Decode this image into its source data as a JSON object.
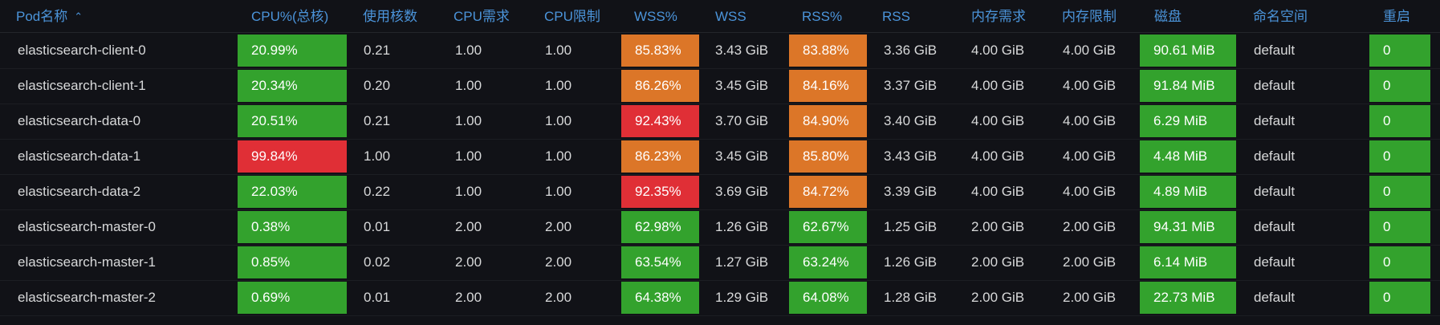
{
  "colors": {
    "background": "#111217",
    "header_text": "#4b94da",
    "cell_text": "#d8d9da",
    "green": "#33a22d",
    "orange": "#dc7628",
    "red": "#e02f36"
  },
  "table": {
    "headers": {
      "pod": "Pod名称",
      "pod_sort_icon": "chevron-up-icon",
      "cpu_pct": "CPU%(总核)",
      "cores": "使用核数",
      "cpu_req": "CPU需求",
      "cpu_lim": "CPU限制",
      "wss_pct": "WSS%",
      "wss": "WSS",
      "rss_pct": "RSS%",
      "rss": "RSS",
      "mem_req": "内存需求",
      "mem_lim": "内存限制",
      "disk": "磁盘",
      "namespace": "命名空间",
      "restarts": "重启"
    },
    "rows": [
      {
        "pod": "elasticsearch-client-0",
        "cpu_pct": "20.99%",
        "cpu_status": "green",
        "cores": "0.21",
        "cpu_req": "1.00",
        "cpu_lim": "1.00",
        "wss_pct": "85.83%",
        "wss_status": "orange",
        "wss": "3.43 GiB",
        "rss_pct": "83.88%",
        "rss_status": "orange",
        "rss": "3.36 GiB",
        "mem_req": "4.00 GiB",
        "mem_lim": "4.00 GiB",
        "disk": "90.61 MiB",
        "disk_status": "green",
        "namespace": "default",
        "restarts": "0",
        "restarts_status": "green"
      },
      {
        "pod": "elasticsearch-client-1",
        "cpu_pct": "20.34%",
        "cpu_status": "green",
        "cores": "0.20",
        "cpu_req": "1.00",
        "cpu_lim": "1.00",
        "wss_pct": "86.26%",
        "wss_status": "orange",
        "wss": "3.45 GiB",
        "rss_pct": "84.16%",
        "rss_status": "orange",
        "rss": "3.37 GiB",
        "mem_req": "4.00 GiB",
        "mem_lim": "4.00 GiB",
        "disk": "91.84 MiB",
        "disk_status": "green",
        "namespace": "default",
        "restarts": "0",
        "restarts_status": "green"
      },
      {
        "pod": "elasticsearch-data-0",
        "cpu_pct": "20.51%",
        "cpu_status": "green",
        "cores": "0.21",
        "cpu_req": "1.00",
        "cpu_lim": "1.00",
        "wss_pct": "92.43%",
        "wss_status": "red",
        "wss": "3.70 GiB",
        "rss_pct": "84.90%",
        "rss_status": "orange",
        "rss": "3.40 GiB",
        "mem_req": "4.00 GiB",
        "mem_lim": "4.00 GiB",
        "disk": "6.29 MiB",
        "disk_status": "green",
        "namespace": "default",
        "restarts": "0",
        "restarts_status": "green"
      },
      {
        "pod": "elasticsearch-data-1",
        "cpu_pct": "99.84%",
        "cpu_status": "red",
        "cores": "1.00",
        "cpu_req": "1.00",
        "cpu_lim": "1.00",
        "wss_pct": "86.23%",
        "wss_status": "orange",
        "wss": "3.45 GiB",
        "rss_pct": "85.80%",
        "rss_status": "orange",
        "rss": "3.43 GiB",
        "mem_req": "4.00 GiB",
        "mem_lim": "4.00 GiB",
        "disk": "4.48 MiB",
        "disk_status": "green",
        "namespace": "default",
        "restarts": "0",
        "restarts_status": "green"
      },
      {
        "pod": "elasticsearch-data-2",
        "cpu_pct": "22.03%",
        "cpu_status": "green",
        "cores": "0.22",
        "cpu_req": "1.00",
        "cpu_lim": "1.00",
        "wss_pct": "92.35%",
        "wss_status": "red",
        "wss": "3.69 GiB",
        "rss_pct": "84.72%",
        "rss_status": "orange",
        "rss": "3.39 GiB",
        "mem_req": "4.00 GiB",
        "mem_lim": "4.00 GiB",
        "disk": "4.89 MiB",
        "disk_status": "green",
        "namespace": "default",
        "restarts": "0",
        "restarts_status": "green"
      },
      {
        "pod": "elasticsearch-master-0",
        "cpu_pct": "0.38%",
        "cpu_status": "green",
        "cores": "0.01",
        "cpu_req": "2.00",
        "cpu_lim": "2.00",
        "wss_pct": "62.98%",
        "wss_status": "green",
        "wss": "1.26 GiB",
        "rss_pct": "62.67%",
        "rss_status": "green",
        "rss": "1.25 GiB",
        "mem_req": "2.00 GiB",
        "mem_lim": "2.00 GiB",
        "disk": "94.31 MiB",
        "disk_status": "green",
        "namespace": "default",
        "restarts": "0",
        "restarts_status": "green"
      },
      {
        "pod": "elasticsearch-master-1",
        "cpu_pct": "0.85%",
        "cpu_status": "green",
        "cores": "0.02",
        "cpu_req": "2.00",
        "cpu_lim": "2.00",
        "wss_pct": "63.54%",
        "wss_status": "green",
        "wss": "1.27 GiB",
        "rss_pct": "63.24%",
        "rss_status": "green",
        "rss": "1.26 GiB",
        "mem_req": "2.00 GiB",
        "mem_lim": "2.00 GiB",
        "disk": "6.14 MiB",
        "disk_status": "green",
        "namespace": "default",
        "restarts": "0",
        "restarts_status": "green"
      },
      {
        "pod": "elasticsearch-master-2",
        "cpu_pct": "0.69%",
        "cpu_status": "green",
        "cores": "0.01",
        "cpu_req": "2.00",
        "cpu_lim": "2.00",
        "wss_pct": "64.38%",
        "wss_status": "green",
        "wss": "1.29 GiB",
        "rss_pct": "64.08%",
        "rss_status": "green",
        "rss": "1.28 GiB",
        "mem_req": "2.00 GiB",
        "mem_lim": "2.00 GiB",
        "disk": "22.73 MiB",
        "disk_status": "green",
        "namespace": "default",
        "restarts": "0",
        "restarts_status": "green"
      }
    ]
  }
}
